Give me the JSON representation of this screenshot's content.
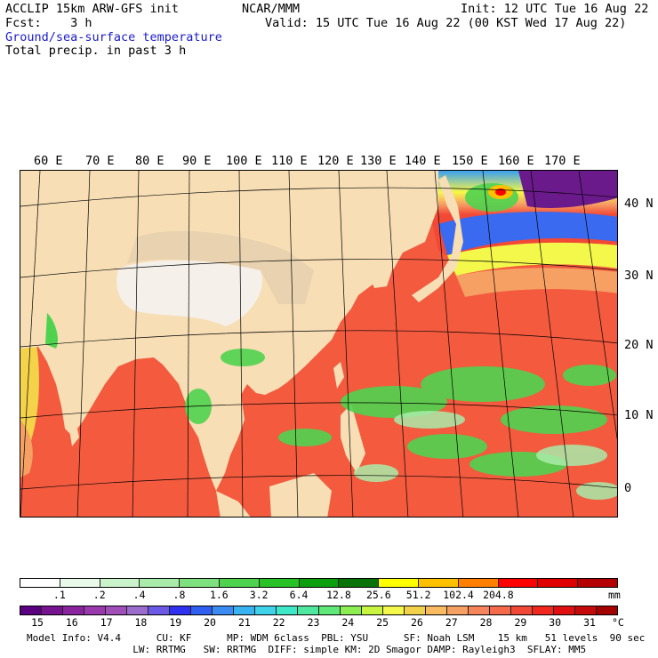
{
  "header": {
    "model": "ACCLIP 15km ARW-GFS init",
    "center": "NCAR/MMM",
    "init": "Init: 12 UTC Tue 16 Aug 22",
    "fcst": "Fcst:    3 h",
    "valid": "Valid: 15 UTC Tue 16 Aug 22 (00 KST Wed 17 Aug 22)",
    "field1": "Ground/sea-surface temperature",
    "field2": "Total precip. in past 3 h"
  },
  "map": {
    "lon_labels": [
      "60 E",
      "70 E",
      "80 E",
      "90 E",
      "100 E",
      "110 E",
      "120 E",
      "130 E",
      "140 E",
      "150 E",
      "160 E",
      "170 E"
    ],
    "lat_labels": [
      "40 N",
      "30 N",
      "20 N",
      "10 N",
      "0"
    ]
  },
  "precip_bar": {
    "colors": [
      "#ffffff",
      "#eafaea",
      "#cbf3cb",
      "#a9eba9",
      "#7fe07f",
      "#4fd34f",
      "#26c226",
      "#0c9e0c",
      "#087308",
      "#ffff00",
      "#ffc000",
      "#ff8000",
      "#ff0000",
      "#e00000",
      "#b40000"
    ],
    "labels": [
      ".1",
      ".2",
      ".4",
      ".8",
      "1.6",
      "3.2",
      "6.4",
      "12.8",
      "25.6",
      "51.2",
      "102.4",
      "204.8"
    ],
    "unit": "mm"
  },
  "temp_bar": {
    "colors": [
      "#5a0080",
      "#76138f",
      "#8a249e",
      "#9a38ad",
      "#a04fb8",
      "#9b6ccc",
      "#6a5ae6",
      "#3030f0",
      "#2f5ff0",
      "#3a8cf2",
      "#38b2f0",
      "#3fd2ea",
      "#3ee8c8",
      "#4fe7a0",
      "#60e878",
      "#8cee50",
      "#c8f640",
      "#f4f84a",
      "#f2d24a",
      "#f8bb60",
      "#f6a064",
      "#f7855c",
      "#f46a4a",
      "#f24836",
      "#f0281e",
      "#e01010",
      "#c40a0a",
      "#a50000"
    ],
    "labels": [
      "15",
      "16",
      "17",
      "18",
      "19",
      "20",
      "21",
      "22",
      "23",
      "24",
      "25",
      "26",
      "27",
      "28",
      "29",
      "30",
      "31"
    ],
    "unit": "°C"
  },
  "footer": {
    "line1": "Model Info: V4.4      CU: KF      MP: WDM 6class  PBL: YSU      SF: Noah LSM    15 km   51 levels  90 sec",
    "line2": "                  LW: RRTMG   SW: RRTMG  DIFF: simple KM: 2D Smagor DAMP: Rayleigh3  SFLAY: MM5"
  }
}
